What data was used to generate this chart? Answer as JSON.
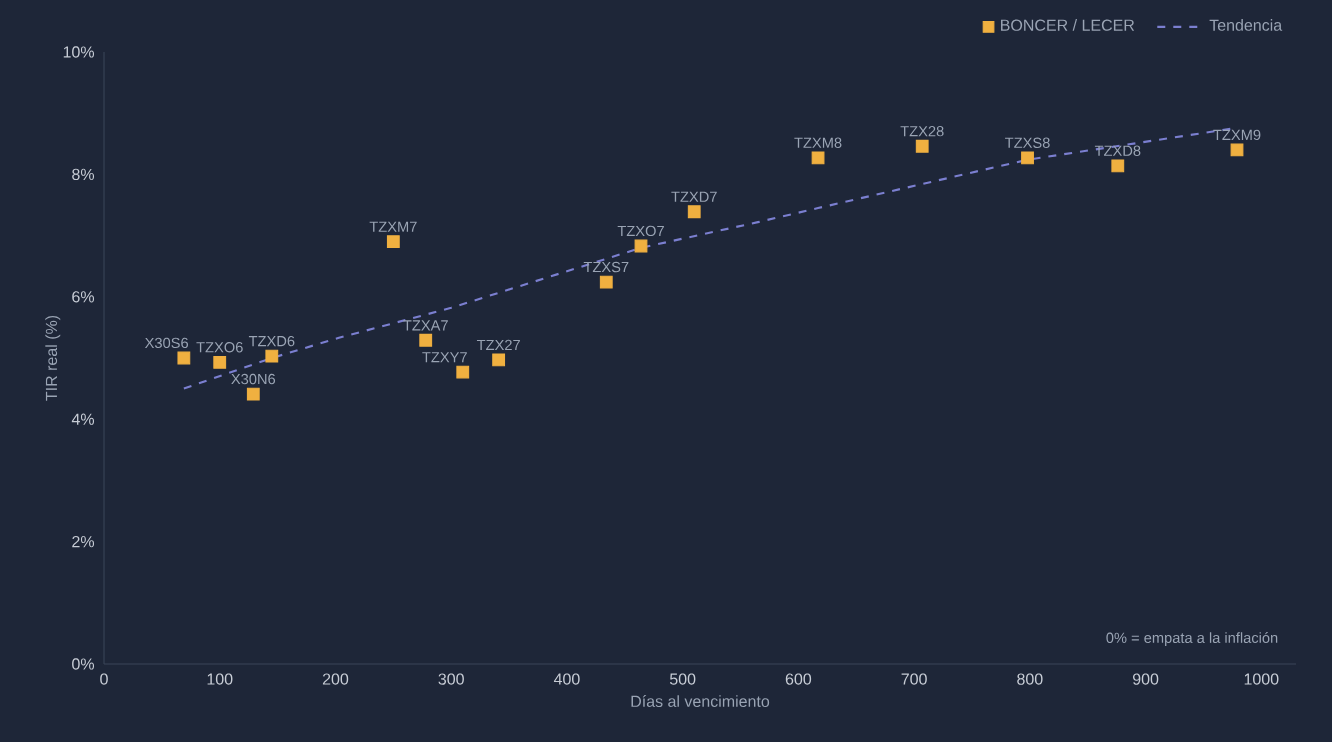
{
  "chart_data": {
    "type": "scatter",
    "xlabel": "Días al vencimiento",
    "ylabel": "TIR real (%)",
    "xlim": [
      0,
      1030
    ],
    "ylim": [
      0,
      10
    ],
    "xticks": [
      0,
      100,
      200,
      300,
      400,
      500,
      600,
      700,
      800,
      900,
      1000
    ],
    "yticks": [
      {
        "value": 0,
        "label": "0%"
      },
      {
        "value": 2,
        "label": "2%"
      },
      {
        "value": 4,
        "label": "4%"
      },
      {
        "value": 6,
        "label": "6%"
      },
      {
        "value": 8,
        "label": "8%"
      },
      {
        "value": 10,
        "label": "10%"
      }
    ],
    "legend": "top right",
    "grid": false,
    "series": [
      {
        "name": "BONCER / LECER",
        "color": "#f0b040",
        "marker": "square",
        "x": [
          69,
          100,
          145,
          129,
          278,
          310,
          341,
          250,
          434,
          464,
          510,
          617,
          707,
          798,
          876,
          979
        ],
        "values": [
          5.0,
          4.93,
          5.03,
          4.41,
          5.29,
          4.77,
          4.97,
          6.9,
          6.24,
          6.83,
          7.39,
          8.27,
          8.46,
          8.27,
          8.14,
          8.4
        ]
      },
      {
        "name": "Tendencia",
        "type": "line",
        "color": "#7b7fd0",
        "marker": "none",
        "line_style": "dashed",
        "x": [
          69,
          145,
          203,
          300,
          464,
          565,
          617,
          798,
          979
        ],
        "values": [
          4.5,
          5.0,
          5.33,
          5.82,
          6.8,
          7.22,
          7.45,
          8.24,
          8.76
        ]
      }
    ],
    "annotations": [
      {
        "text": "X30S6",
        "x": 69,
        "y": 5.0
      },
      {
        "text": "TZXO6",
        "x": 100,
        "y": 4.93
      },
      {
        "text": "TZXD6",
        "x": 145,
        "y": 5.03
      },
      {
        "text": "X30N6",
        "x": 129,
        "y": 4.41
      },
      {
        "text": "TZXA7",
        "x": 278,
        "y": 5.29
      },
      {
        "text": "TZXY7",
        "x": 310,
        "y": 4.77
      },
      {
        "text": "TZX27",
        "x": 341,
        "y": 4.97
      },
      {
        "text": "TZXM7",
        "x": 250,
        "y": 6.9
      },
      {
        "text": "TZXS7",
        "x": 434,
        "y": 6.24
      },
      {
        "text": "TZXO7",
        "x": 464,
        "y": 6.83
      },
      {
        "text": "TZXD7",
        "x": 510,
        "y": 7.39
      },
      {
        "text": "TZXM8",
        "x": 617,
        "y": 8.27
      },
      {
        "text": "TZX28",
        "x": 707,
        "y": 8.46
      },
      {
        "text": "TZXS8",
        "x": 798,
        "y": 8.27
      },
      {
        "text": "TZXD8",
        "x": 876,
        "y": 8.14
      },
      {
        "text": "TZXM9",
        "x": 979,
        "y": 8.4
      },
      "0% = empata a la inflación"
    ]
  }
}
